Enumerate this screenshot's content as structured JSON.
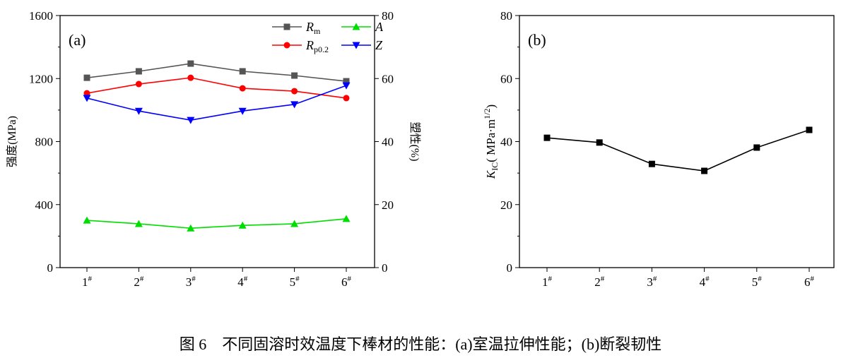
{
  "chart_data": [
    {
      "type": "line",
      "panel_label": "(a)",
      "categories": [
        "1#",
        "2#",
        "3#",
        "4#",
        "5#",
        "6#"
      ],
      "ylabel_left": "强度(MPa)",
      "ylabel_right": "塑性(%)",
      "ylim_left": [
        0,
        1600
      ],
      "yticks_left": [
        0,
        400,
        800,
        1200,
        1600
      ],
      "ylim_right": [
        0,
        80
      ],
      "yticks_right": [
        0,
        20,
        40,
        60,
        80
      ],
      "legend_placement": "top-right",
      "series": [
        {
          "name": "Rm",
          "name_main": "R",
          "name_sub": "m",
          "axis": "left",
          "color": "#555555",
          "marker": "square",
          "values": [
            1205,
            1246,
            1295,
            1246,
            1219,
            1183
          ]
        },
        {
          "name": "Rp0.2",
          "name_main": "R",
          "name_sub": "p0.2",
          "axis": "left",
          "color": "#ff0000",
          "marker": "circle",
          "values": [
            1107,
            1165,
            1205,
            1138,
            1120,
            1076
          ]
        },
        {
          "name": "A",
          "name_main": "A",
          "name_sub": "",
          "axis": "right",
          "color": "#00dd00",
          "marker": "triangle-up",
          "values": [
            15.0,
            13.9,
            12.5,
            13.4,
            13.9,
            15.5
          ]
        },
        {
          "name": "Z",
          "name_main": "Z",
          "name_sub": "",
          "axis": "right",
          "color": "#0000ff",
          "marker": "triangle-down",
          "values": [
            53.8,
            49.7,
            46.8,
            49.7,
            51.8,
            57.8
          ]
        }
      ]
    },
    {
      "type": "line",
      "panel_label": "(b)",
      "categories": [
        "1#",
        "2#",
        "3#",
        "4#",
        "5#",
        "6#"
      ],
      "ylabel_main": "K",
      "ylabel_sub": "IC",
      "ylabel_rest": "( MPa·m",
      "ylabel_sup": "1/2",
      "ylabel_end": ")",
      "ylim": [
        0,
        80
      ],
      "yticks": [
        0,
        20,
        40,
        60,
        80
      ],
      "series": [
        {
          "color": "#000000",
          "marker": "square",
          "values": [
            41.2,
            39.7,
            32.9,
            30.7,
            38.1,
            43.7
          ]
        }
      ]
    }
  ],
  "caption": "图 6　不同固溶时效温度下棒材的性能：(a)室温拉伸性能；(b)断裂韧性"
}
